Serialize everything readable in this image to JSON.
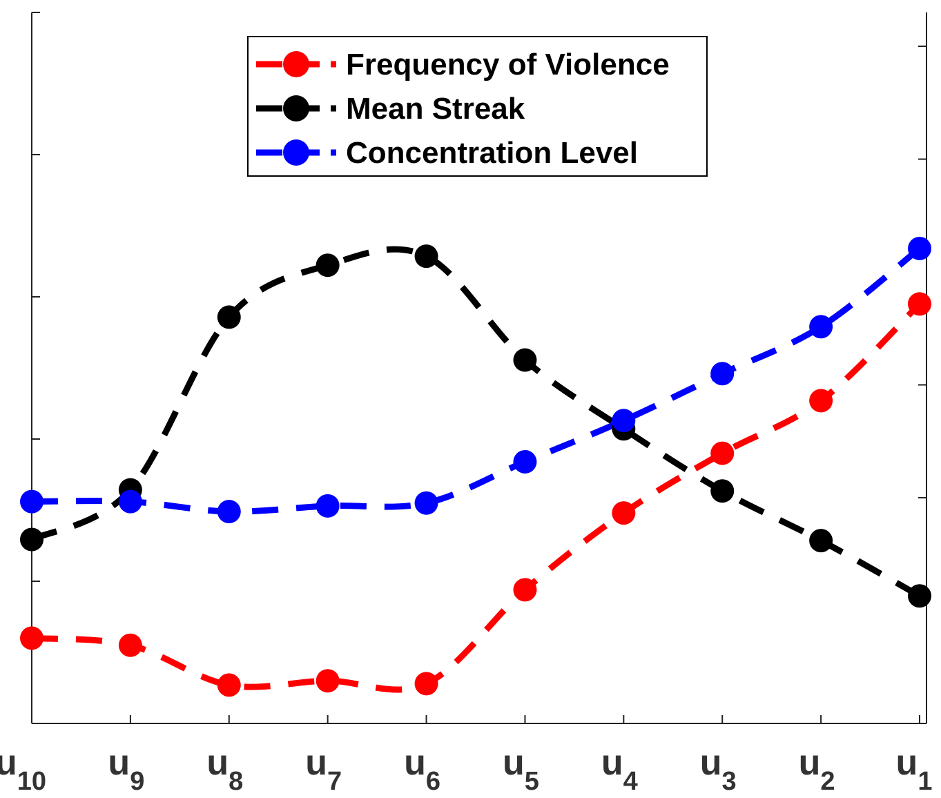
{
  "chart_data": {
    "type": "line",
    "categories": [
      {
        "base": "u",
        "sub": "10"
      },
      {
        "base": "u",
        "sub": "9"
      },
      {
        "base": "u",
        "sub": "8"
      },
      {
        "base": "u",
        "sub": "7"
      },
      {
        "base": "u",
        "sub": "6"
      },
      {
        "base": "u",
        "sub": "5"
      },
      {
        "base": "u",
        "sub": "4"
      },
      {
        "base": "u",
        "sub": "3"
      },
      {
        "base": "u",
        "sub": "2"
      },
      {
        "base": "u",
        "sub": "1"
      }
    ],
    "series": [
      {
        "name": "Frequency of Violence",
        "color": "#ff0000",
        "axis": "left",
        "values": [
          0.6,
          0.55,
          0.27,
          0.3,
          0.28,
          0.94,
          1.48,
          1.9,
          2.27,
          2.95
        ]
      },
      {
        "name": "Mean Streak",
        "color": "#000000",
        "axis": "right",
        "values": [
          1.63,
          2.07,
          3.6,
          4.06,
          4.14,
          3.22,
          2.61,
          2.06,
          1.62,
          1.13
        ]
      },
      {
        "name": "Concentration Level",
        "color": "#0000ff",
        "axis": "left",
        "values": [
          1.56,
          1.56,
          1.49,
          1.53,
          1.55,
          1.84,
          2.13,
          2.46,
          2.79,
          3.34
        ]
      }
    ],
    "left_axis": {
      "ylim": [
        0,
        5
      ],
      "ticks": [
        0,
        1,
        2,
        3,
        4,
        5
      ],
      "tick_labels_visible": false
    },
    "right_axis": {
      "ylim": [
        0,
        6.3
      ],
      "ticks": [
        0,
        2,
        3,
        5,
        6
      ],
      "tick_labels_visible": false
    },
    "line_style": "dashed",
    "marker": "circle",
    "title": "",
    "xlabel": "",
    "ylabel": "",
    "grid": false,
    "legend_position": "top-center"
  }
}
